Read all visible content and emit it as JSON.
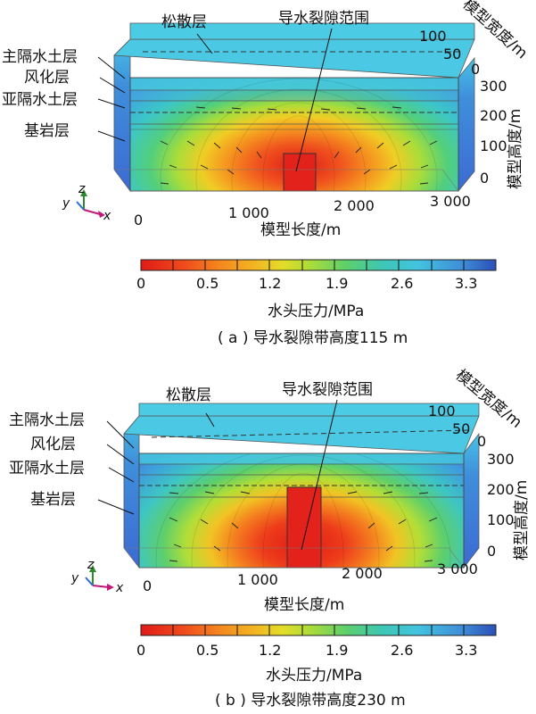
{
  "panels": [
    {
      "layer_labels": {
        "loose": "松散层",
        "main_aquiclude": "主隔水土层",
        "weathered": "风化层",
        "sub_aquiclude": "亚隔水土层",
        "bedrock": "基岩层"
      },
      "fracture_label": "导水裂隙范围",
      "x_ticks": [
        "0",
        "1 000",
        "2 000",
        "3 000"
      ],
      "x_label": "模型长度/m",
      "width_ticks": [
        "100",
        "50",
        "0"
      ],
      "width_label": "模型宽度/m",
      "height_ticks": [
        "300",
        "200",
        "100",
        "0"
      ],
      "height_label": "模型高度/m",
      "colorbar_ticks": [
        "0",
        "0.5",
        "1.2",
        "1.9",
        "2.6",
        "3.3"
      ],
      "colorbar_label": "水头压力/MPa",
      "caption": "( a ) 导水裂隙带高度115 m",
      "fracture_height_m": 115
    },
    {
      "layer_labels": {
        "loose": "松散层",
        "main_aquiclude": "主隔水土层",
        "weathered": "风化层",
        "sub_aquiclude": "亚隔水土层",
        "bedrock": "基岩层"
      },
      "fracture_label": "导水裂隙范围",
      "x_ticks": [
        "0",
        "1 000",
        "2 000",
        "3 000"
      ],
      "x_label": "模型长度/m",
      "width_ticks": [
        "100",
        "50",
        "0"
      ],
      "width_label": "模型宽度/m",
      "height_ticks": [
        "300",
        "200",
        "100",
        "0"
      ],
      "height_label": "模型高度/m",
      "colorbar_ticks": [
        "0",
        "0.5",
        "1.2",
        "1.9",
        "2.6",
        "3.3"
      ],
      "colorbar_label": "水头压力/MPa",
      "caption": "( b ) 导水裂隙带高度230 m",
      "fracture_height_m": 230
    }
  ],
  "axis_letters": {
    "x": "x",
    "y": "y",
    "z": "z"
  },
  "colors": {
    "bedrock_blue": "#3f6fd4",
    "loose_cyan": "#47c7e0",
    "fracture_red": "#e2221b",
    "dark_blue": "#1d3f9f"
  }
}
